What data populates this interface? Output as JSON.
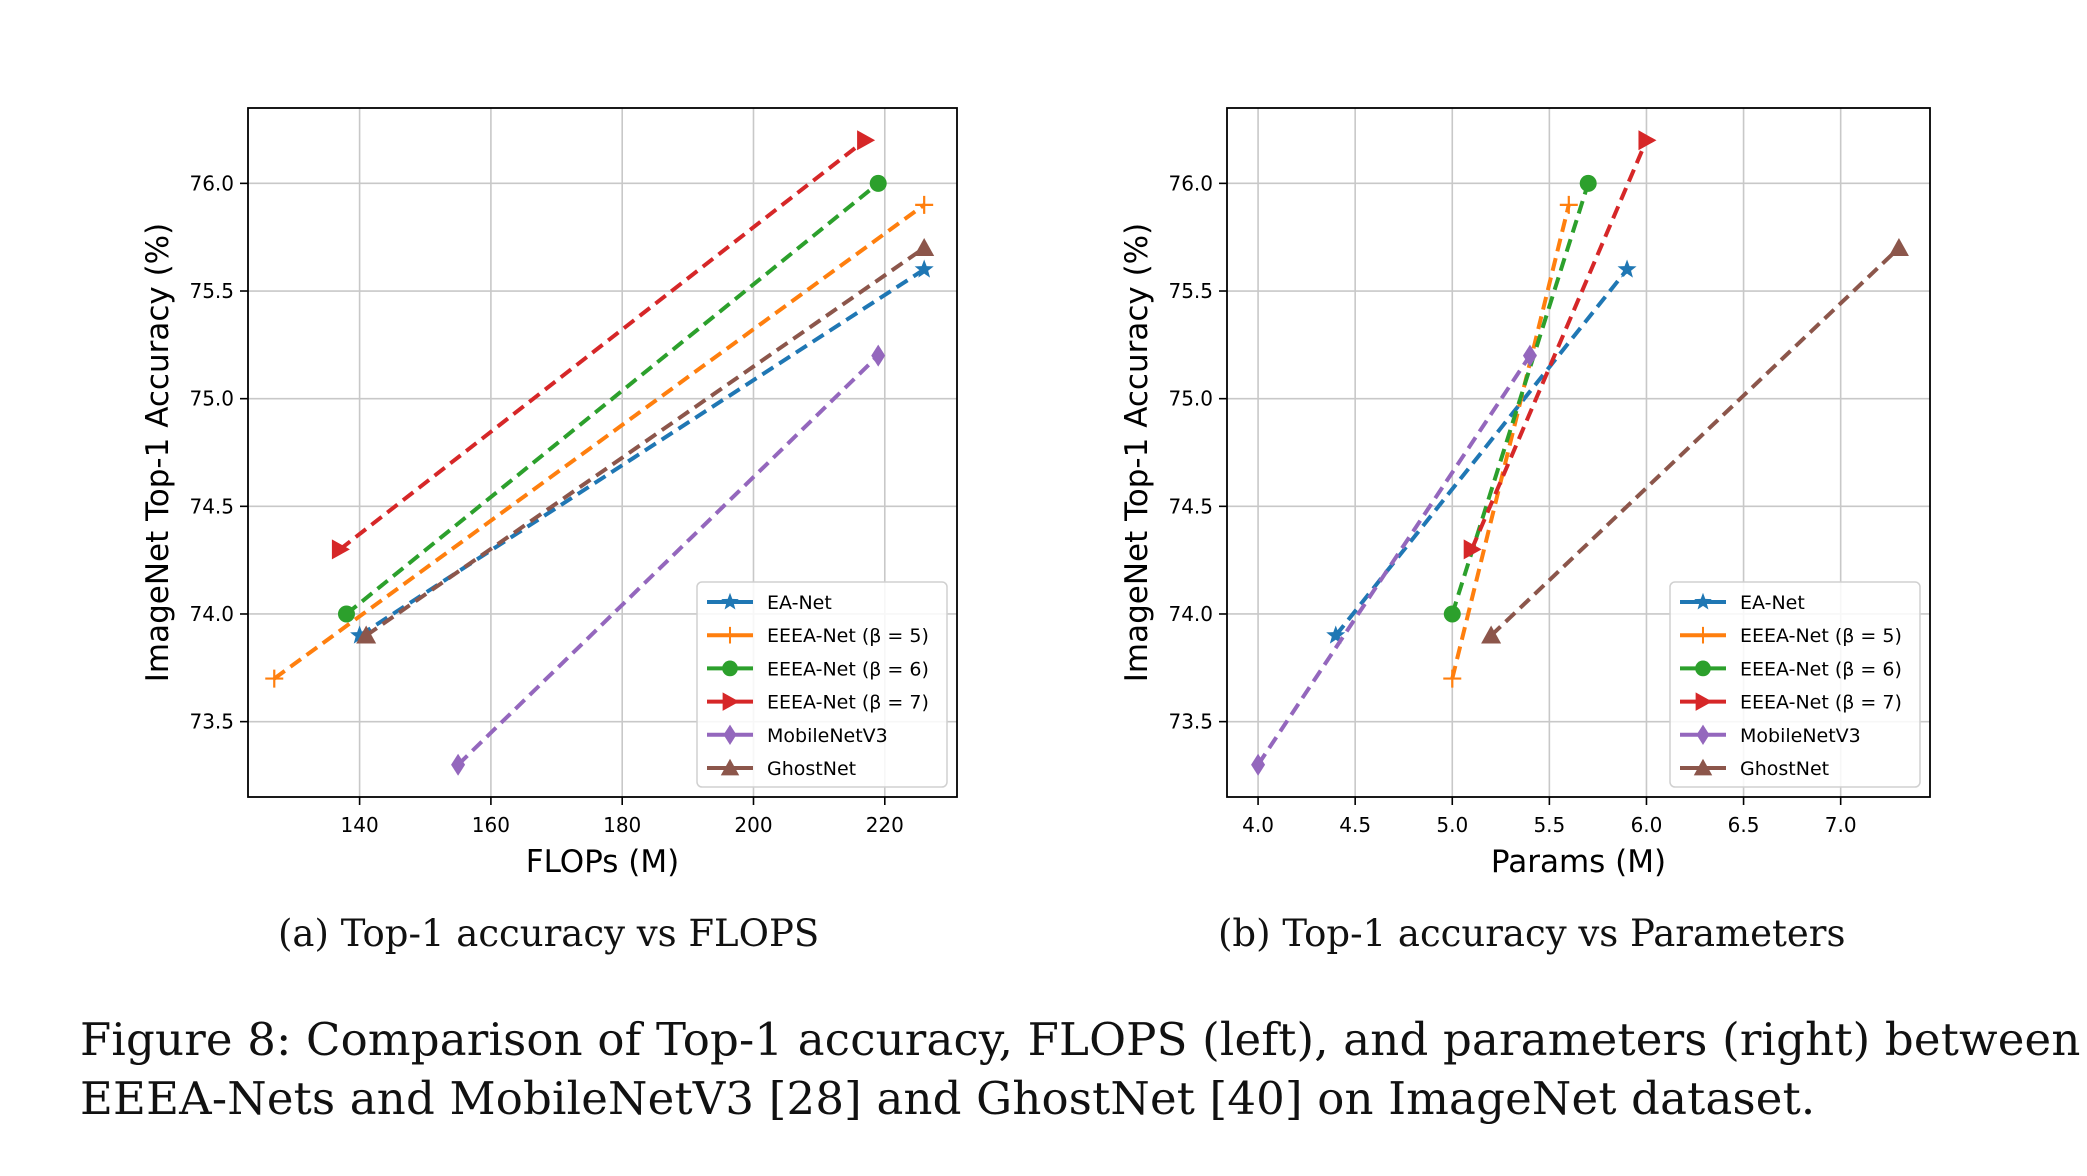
{
  "chart_data": [
    {
      "type": "line",
      "id": "a",
      "xlabel": "FLOPs (M)",
      "ylabel": "ImageNet Top-1 Accuracy (%)",
      "xlim": [
        123,
        231
      ],
      "ylim": [
        73.15,
        76.35
      ],
      "xticks": [
        140,
        160,
        180,
        200,
        220
      ],
      "yticks": [
        73.5,
        74.0,
        74.5,
        75.0,
        75.5,
        76.0
      ],
      "xtick_labels": [
        "140",
        "160",
        "180",
        "200",
        "220"
      ],
      "ytick_labels": [
        "73.5",
        "74.0",
        "74.5",
        "75.0",
        "75.5",
        "76.0"
      ],
      "grid": true,
      "legend_position": "lower-right",
      "series": [
        {
          "name": "EA-Net",
          "color": "#1f77b4",
          "marker": "star",
          "points": [
            [
              140,
              73.9
            ],
            [
              226,
              75.6
            ]
          ]
        },
        {
          "name": "EEEA-Net (β = 5)",
          "color": "#ff7f0e",
          "marker": "plus",
          "points": [
            [
              127,
              73.7
            ],
            [
              226,
              75.9
            ]
          ]
        },
        {
          "name": "EEEA-Net (β = 6)",
          "color": "#2ca02c",
          "marker": "circle",
          "points": [
            [
              138,
              74.0
            ],
            [
              219,
              76.0
            ]
          ]
        },
        {
          "name": "EEEA-Net (β = 7)",
          "color": "#d62728",
          "marker": "triangle-right",
          "points": [
            [
              137,
              74.3
            ],
            [
              217,
              76.2
            ]
          ]
        },
        {
          "name": "MobileNetV3",
          "color": "#9467bd",
          "marker": "diamond",
          "points": [
            [
              155,
              73.3
            ],
            [
              219,
              75.2
            ]
          ]
        },
        {
          "name": "GhostNet",
          "color": "#8c564b",
          "marker": "triangle-up",
          "points": [
            [
              141,
              73.9
            ],
            [
              226,
              75.7
            ]
          ]
        }
      ]
    },
    {
      "type": "line",
      "id": "b",
      "xlabel": "Params (M)",
      "ylabel": "ImageNet Top-1 Accuracy (%)",
      "xlim": [
        3.84,
        7.46
      ],
      "ylim": [
        73.15,
        76.35
      ],
      "xticks": [
        4.0,
        4.5,
        5.0,
        5.5,
        6.0,
        6.5,
        7.0
      ],
      "yticks": [
        73.5,
        74.0,
        74.5,
        75.0,
        75.5,
        76.0
      ],
      "xtick_labels": [
        "4.0",
        "4.5",
        "5.0",
        "5.5",
        "6.0",
        "6.5",
        "7.0"
      ],
      "ytick_labels": [
        "73.5",
        "74.0",
        "74.5",
        "75.0",
        "75.5",
        "76.0"
      ],
      "grid": true,
      "legend_position": "lower-right",
      "series": [
        {
          "name": "EA-Net",
          "color": "#1f77b4",
          "marker": "star",
          "points": [
            [
              4.4,
              73.9
            ],
            [
              5.9,
              75.6
            ]
          ]
        },
        {
          "name": "EEEA-Net (β = 5)",
          "color": "#ff7f0e",
          "marker": "plus",
          "points": [
            [
              5.0,
              73.7
            ],
            [
              5.6,
              75.9
            ]
          ]
        },
        {
          "name": "EEEA-Net (β = 6)",
          "color": "#2ca02c",
          "marker": "circle",
          "points": [
            [
              5.0,
              74.0
            ],
            [
              5.7,
              76.0
            ]
          ]
        },
        {
          "name": "EEEA-Net (β = 7)",
          "color": "#d62728",
          "marker": "triangle-right",
          "points": [
            [
              5.1,
              74.3
            ],
            [
              6.0,
              76.2
            ]
          ]
        },
        {
          "name": "MobileNetV3",
          "color": "#9467bd",
          "marker": "diamond",
          "points": [
            [
              4.0,
              73.3
            ],
            [
              5.4,
              75.2
            ]
          ]
        },
        {
          "name": "GhostNet",
          "color": "#8c564b",
          "marker": "triangle-up",
          "points": [
            [
              5.2,
              73.9
            ],
            [
              7.3,
              75.7
            ]
          ]
        }
      ]
    }
  ],
  "captions": {
    "a": "(a) Top-1 accuracy vs FLOPS",
    "b": "(b) Top-1 accuracy vs Parameters",
    "figure_line1": "Figure 8: Comparison of Top-1 accuracy, FLOPS (left), and parameters (right) between",
    "figure_line2": "EEEA-Nets and MobileNetV3 [28] and GhostNet [40] on ImageNet dataset."
  }
}
